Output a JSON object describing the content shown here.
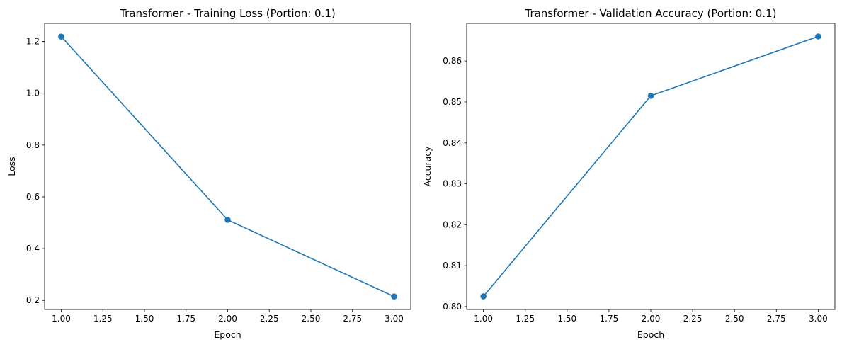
{
  "chart_data": [
    {
      "type": "line",
      "title": "Transformer - Training Loss (Portion: 0.1)",
      "xlabel": "Epoch",
      "ylabel": "Loss",
      "x": [
        1.0,
        2.0,
        3.0
      ],
      "series": [
        {
          "values": [
            1.219,
            0.511,
            0.215
          ],
          "color": "#1f77b4",
          "marker": "circle"
        }
      ],
      "xlim": [
        0.9,
        3.1
      ],
      "ylim": [
        0.165,
        1.27
      ],
      "xticks": [
        1.0,
        1.25,
        1.5,
        1.75,
        2.0,
        2.25,
        2.5,
        2.75,
        3.0
      ],
      "xtick_labels": [
        "1.00",
        "1.25",
        "1.50",
        "1.75",
        "2.00",
        "2.25",
        "2.50",
        "2.75",
        "3.00"
      ],
      "yticks": [
        0.2,
        0.4,
        0.6,
        0.8,
        1.0,
        1.2
      ],
      "ytick_labels": [
        "0.2",
        "0.4",
        "0.6",
        "0.8",
        "1.0",
        "1.2"
      ],
      "grid": false,
      "legend": "none"
    },
    {
      "type": "line",
      "title": "Transformer - Validation Accuracy (Portion: 0.1)",
      "xlabel": "Epoch",
      "ylabel": "Accuracy",
      "x": [
        1.0,
        2.0,
        3.0
      ],
      "series": [
        {
          "values": [
            0.8025,
            0.8515,
            0.866
          ],
          "color": "#1f77b4",
          "marker": "circle"
        }
      ],
      "xlim": [
        0.9,
        3.1
      ],
      "ylim": [
        0.7993,
        0.8692
      ],
      "xticks": [
        1.0,
        1.25,
        1.5,
        1.75,
        2.0,
        2.25,
        2.5,
        2.75,
        3.0
      ],
      "xtick_labels": [
        "1.00",
        "1.25",
        "1.50",
        "1.75",
        "2.00",
        "2.25",
        "2.50",
        "2.75",
        "3.00"
      ],
      "yticks": [
        0.8,
        0.81,
        0.82,
        0.83,
        0.84,
        0.85,
        0.86
      ],
      "ytick_labels": [
        "0.80",
        "0.81",
        "0.82",
        "0.83",
        "0.84",
        "0.85",
        "0.86"
      ],
      "grid": false,
      "legend": "none"
    }
  ]
}
